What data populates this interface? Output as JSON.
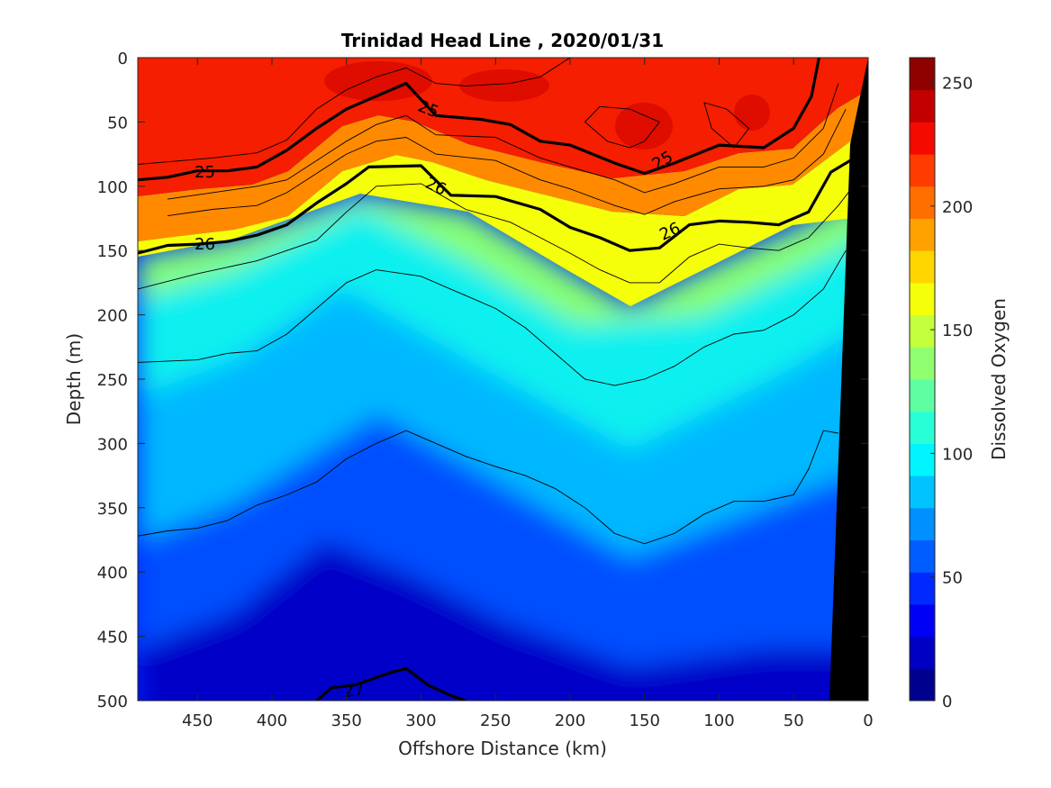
{
  "chart_data": {
    "type": "heatmap",
    "title": "Trinidad Head Line , 2020/01/31",
    "xlabel": "Offshore Distance (km)",
    "ylabel": "Depth (m)",
    "colorbar_label": "Dissolved Oxygen",
    "xlim": [
      490,
      0
    ],
    "ylim": [
      0,
      500
    ],
    "clim": [
      0,
      260
    ],
    "x_ticks": [
      "450",
      "400",
      "350",
      "300",
      "250",
      "200",
      "150",
      "100",
      "50",
      "0"
    ],
    "y_ticks": [
      "0",
      "50",
      "100",
      "150",
      "200",
      "250",
      "300",
      "350",
      "400",
      "450",
      "500"
    ],
    "colorbar_ticks": [
      "250",
      "200",
      "150",
      "100",
      "50",
      "0"
    ],
    "colormap": [
      "#00008f",
      "#0000c3",
      "#0000f5",
      "#0029ff",
      "#005dff",
      "#0090ff",
      "#00c3ff",
      "#00f5ff",
      "#29ffd6",
      "#5dffa2",
      "#90ff6f",
      "#c3ff3c",
      "#f5ff0a",
      "#ffd600",
      "#ffa200",
      "#ff6f00",
      "#ff3c00",
      "#f50a00",
      "#c30000",
      "#8f0000"
    ],
    "density_contours": [
      {
        "label": "25",
        "points": [
          [
            490,
            95
          ],
          [
            470,
            93
          ],
          [
            450,
            88
          ],
          [
            430,
            88
          ],
          [
            410,
            85
          ],
          [
            390,
            72
          ],
          [
            370,
            55
          ],
          [
            350,
            40
          ],
          [
            330,
            30
          ],
          [
            310,
            20
          ],
          [
            290,
            45
          ],
          [
            260,
            48
          ],
          [
            240,
            52
          ],
          [
            220,
            65
          ],
          [
            200,
            68
          ],
          [
            170,
            82
          ],
          [
            150,
            90
          ],
          [
            130,
            82
          ],
          [
            100,
            68
          ],
          [
            70,
            70
          ],
          [
            50,
            55
          ],
          [
            38,
            30
          ],
          [
            33,
            0
          ]
        ]
      },
      {
        "label": "26",
        "points": [
          [
            490,
            152
          ],
          [
            470,
            146
          ],
          [
            450,
            145
          ],
          [
            430,
            143
          ],
          [
            410,
            138
          ],
          [
            390,
            130
          ],
          [
            370,
            113
          ],
          [
            350,
            98
          ],
          [
            335,
            85
          ],
          [
            300,
            84
          ],
          [
            280,
            107
          ],
          [
            250,
            108
          ],
          [
            220,
            118
          ],
          [
            200,
            132
          ],
          [
            180,
            140
          ],
          [
            160,
            150
          ],
          [
            140,
            148
          ],
          [
            120,
            130
          ],
          [
            100,
            127
          ],
          [
            80,
            128
          ],
          [
            60,
            130
          ],
          [
            40,
            120
          ],
          [
            25,
            89
          ],
          [
            12,
            80
          ]
        ]
      },
      {
        "label": "27",
        "points": [
          [
            370,
            500
          ],
          [
            360,
            490
          ],
          [
            345,
            488
          ],
          [
            320,
            478
          ],
          [
            310,
            475
          ],
          [
            295,
            488
          ],
          [
            280,
            496
          ],
          [
            270,
            500
          ]
        ]
      }
    ],
    "thin_contours": [
      [
        [
          490,
          83
        ],
        [
          470,
          81
        ],
        [
          440,
          78
        ],
        [
          410,
          74
        ],
        [
          390,
          64
        ],
        [
          370,
          40
        ],
        [
          350,
          25
        ],
        [
          330,
          15
        ],
        [
          310,
          8
        ],
        [
          290,
          20
        ],
        [
          270,
          22
        ],
        [
          240,
          20
        ],
        [
          220,
          15
        ],
        [
          200,
          0
        ]
      ],
      [
        [
          470,
          110
        ],
        [
          440,
          105
        ],
        [
          410,
          100
        ],
        [
          390,
          95
        ],
        [
          370,
          80
        ],
        [
          350,
          65
        ],
        [
          330,
          52
        ],
        [
          310,
          45
        ],
        [
          290,
          60
        ],
        [
          250,
          62
        ],
        [
          220,
          78
        ],
        [
          200,
          85
        ],
        [
          170,
          95
        ],
        [
          150,
          105
        ],
        [
          130,
          98
        ],
        [
          100,
          85
        ],
        [
          70,
          85
        ],
        [
          50,
          78
        ],
        [
          30,
          55
        ],
        [
          20,
          20
        ]
      ],
      [
        [
          470,
          123
        ],
        [
          440,
          118
        ],
        [
          410,
          115
        ],
        [
          390,
          105
        ],
        [
          370,
          90
        ],
        [
          350,
          75
        ],
        [
          330,
          65
        ],
        [
          310,
          62
        ],
        [
          290,
          75
        ],
        [
          250,
          80
        ],
        [
          220,
          95
        ],
        [
          200,
          102
        ],
        [
          170,
          115
        ],
        [
          150,
          122
        ],
        [
          130,
          112
        ],
        [
          100,
          102
        ],
        [
          70,
          100
        ],
        [
          50,
          95
        ],
        [
          30,
          75
        ],
        [
          15,
          40
        ]
      ],
      [
        [
          490,
          180
        ],
        [
          450,
          168
        ],
        [
          410,
          158
        ],
        [
          370,
          142
        ],
        [
          350,
          120
        ],
        [
          330,
          100
        ],
        [
          300,
          98
        ],
        [
          270,
          118
        ],
        [
          240,
          128
        ],
        [
          220,
          140
        ],
        [
          200,
          152
        ],
        [
          180,
          165
        ],
        [
          160,
          175
        ],
        [
          140,
          175
        ],
        [
          120,
          155
        ],
        [
          100,
          145
        ],
        [
          80,
          148
        ],
        [
          60,
          150
        ],
        [
          40,
          140
        ],
        [
          20,
          115
        ],
        [
          10,
          100
        ]
      ],
      [
        [
          490,
          237
        ],
        [
          450,
          235
        ],
        [
          430,
          230
        ],
        [
          410,
          228
        ],
        [
          390,
          215
        ],
        [
          370,
          195
        ],
        [
          350,
          175
        ],
        [
          330,
          165
        ],
        [
          300,
          170
        ],
        [
          270,
          185
        ],
        [
          250,
          195
        ],
        [
          230,
          210
        ],
        [
          210,
          230
        ],
        [
          190,
          250
        ],
        [
          170,
          255
        ],
        [
          150,
          250
        ],
        [
          130,
          240
        ],
        [
          110,
          225
        ],
        [
          90,
          215
        ],
        [
          70,
          212
        ],
        [
          50,
          200
        ],
        [
          30,
          180
        ],
        [
          15,
          150
        ]
      ],
      [
        [
          490,
          372
        ],
        [
          470,
          368
        ],
        [
          450,
          366
        ],
        [
          430,
          360
        ],
        [
          410,
          348
        ],
        [
          390,
          340
        ],
        [
          370,
          330
        ],
        [
          350,
          312
        ],
        [
          330,
          300
        ],
        [
          310,
          290
        ],
        [
          290,
          300
        ],
        [
          270,
          310
        ],
        [
          250,
          318
        ],
        [
          230,
          325
        ],
        [
          210,
          335
        ],
        [
          190,
          350
        ],
        [
          170,
          370
        ],
        [
          150,
          378
        ],
        [
          130,
          370
        ],
        [
          110,
          355
        ],
        [
          90,
          345
        ],
        [
          70,
          345
        ],
        [
          50,
          340
        ],
        [
          40,
          320
        ],
        [
          30,
          290
        ],
        [
          20,
          292
        ]
      ],
      [
        [
          150,
          65
        ],
        [
          140,
          50
        ],
        [
          160,
          40
        ],
        [
          180,
          38
        ],
        [
          190,
          50
        ],
        [
          175,
          65
        ],
        [
          160,
          70
        ],
        [
          150,
          65
        ]
      ],
      [
        [
          90,
          70
        ],
        [
          80,
          55
        ],
        [
          95,
          40
        ],
        [
          110,
          35
        ],
        [
          105,
          55
        ],
        [
          95,
          65
        ],
        [
          90,
          70
        ]
      ]
    ]
  }
}
